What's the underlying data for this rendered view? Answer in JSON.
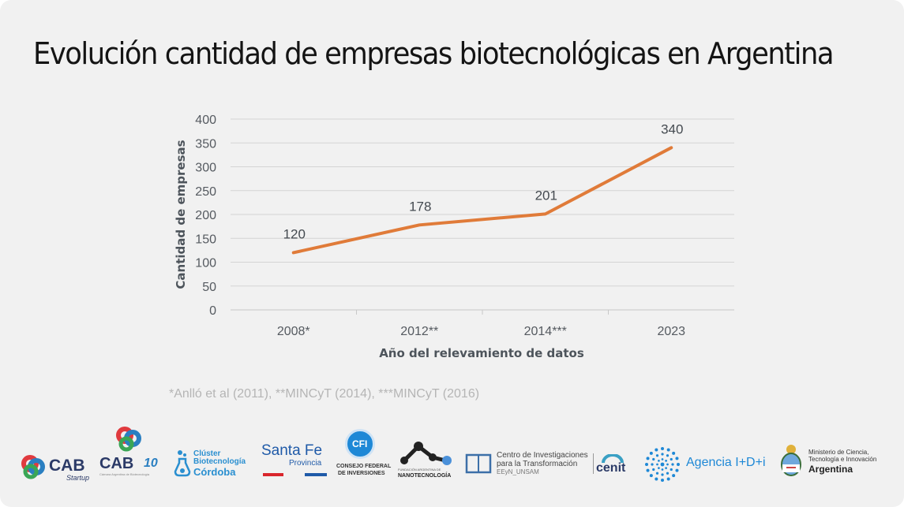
{
  "slide": {
    "title": "Evolución cantidad de empresas biotecnológicas en Argentina",
    "source_note": "*Anlló et al (2011), **MINCyT (2014), ***MINCyT (2016)"
  },
  "chart_data": {
    "type": "line",
    "categories": [
      "2008*",
      "2012**",
      "2014***",
      "2023"
    ],
    "series": [
      {
        "values": [
          120,
          178,
          201,
          340
        ],
        "color": "#e07b39"
      }
    ],
    "data_labels": [
      "120",
      "178",
      "201",
      "340"
    ],
    "xlabel": "Año del relevamiento de datos",
    "ylabel": "Cantidad de empresas",
    "ylim": [
      0,
      400
    ],
    "yticks": [
      0,
      50,
      100,
      150,
      200,
      250,
      300,
      350,
      400
    ],
    "grid": true
  },
  "logos": {
    "cab_startup": {
      "main": "CAB",
      "sub": "Startup"
    },
    "cab_10": {
      "main": "CAB",
      "badge": "10",
      "sub": "Cámara Argentina de Biotecnología"
    },
    "cluster": {
      "line1": "Clúster",
      "line2": "Biotecnología",
      "line3": "Córdoba"
    },
    "santa_fe": {
      "line1": "Santa Fe",
      "line2": "Provincia"
    },
    "cfi": {
      "badge": "CFI",
      "line1": "CONSEJO FEDERAL",
      "line2": "DE INVERSIONES"
    },
    "nanotec": {
      "line1": "FUNDACIÓN ARGENTINA DE",
      "line2": "NANOTECNOLOGÍA"
    },
    "cenit": {
      "line1": "Centro de Investigaciones",
      "line2": "para la Transformación",
      "line3": "EEyN_UNSAM",
      "brand": "cenit"
    },
    "agencia": {
      "label": "Agencia I+D+i"
    },
    "ministerio": {
      "line1": "Ministerio de Ciencia,",
      "line2": "Tecnología e Innovación",
      "line3": "Argentina"
    }
  },
  "colors": {
    "line": "#e07b39",
    "grid": "#d4d4d4",
    "background": "#f1f1f1",
    "cab_red": "#e03a3e",
    "cab_blue": "#2a7fc1",
    "cab_green": "#3aa655",
    "cluster_blue": "#2a8fd0",
    "santa_fe_blue": "#1f5aa8",
    "santa_fe_red": "#d9262c",
    "agencia_blue": "#1e88d6"
  }
}
